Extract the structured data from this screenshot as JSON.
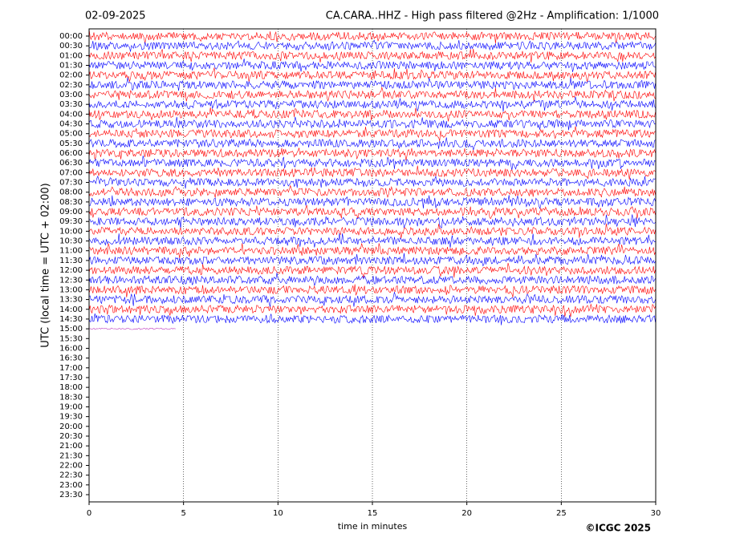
{
  "chart_data": {
    "type": "helicorder",
    "title_left": "02-09-2025",
    "title": "CA.CARA..HHZ - High pass filtered @2Hz - Amplification: 1/1000",
    "xlabel": "time in minutes",
    "ylabel": "UTC (local time = UTC + 02:00)",
    "credit": "©ICGC 2025",
    "categories": [
      "00:00",
      "00:30",
      "01:00",
      "01:30",
      "02:00",
      "02:30",
      "03:00",
      "03:30",
      "04:00",
      "04:30",
      "05:00",
      "05:30",
      "06:00",
      "06:30",
      "07:00",
      "07:30",
      "08:00",
      "08:30",
      "09:00",
      "09:30",
      "10:00",
      "10:30",
      "11:00",
      "11:30",
      "12:00",
      "12:30",
      "13:00",
      "13:30",
      "14:00",
      "14:30",
      "15:00",
      "15:30",
      "16:00",
      "16:30",
      "17:00",
      "17:30",
      "18:00",
      "18:30",
      "19:00",
      "19:30",
      "20:00",
      "20:30",
      "21:00",
      "21:30",
      "22:00",
      "22:30",
      "23:00",
      "23:30"
    ],
    "values": [
      30,
      30,
      30,
      30,
      30,
      30,
      30,
      30,
      30,
      30,
      30,
      30,
      30,
      30,
      30,
      30,
      30,
      30,
      30,
      30,
      30,
      30,
      30,
      30,
      30,
      30,
      30,
      30,
      30,
      30,
      4.6,
      null,
      null,
      null,
      null,
      null,
      null,
      null,
      null,
      null,
      null,
      null,
      null,
      null,
      null,
      null,
      null,
      null
    ],
    "colors": [
      "#ff0000",
      "#0000ff"
    ],
    "xlim": [
      0,
      30
    ],
    "xticks": [
      0,
      5,
      10,
      15,
      20,
      25,
      30
    ],
    "grid": true
  }
}
